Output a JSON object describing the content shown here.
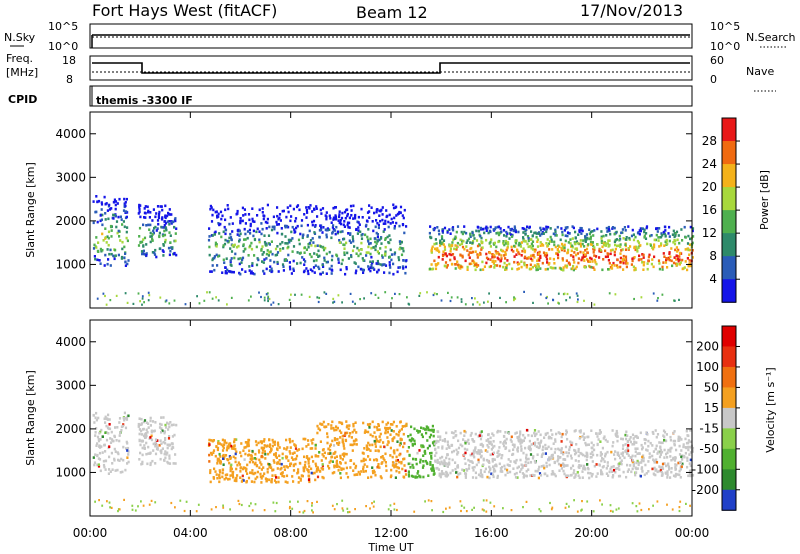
{
  "header": {
    "station": "Fort Hays West (fitACF)",
    "beam": "Beam 12",
    "date": "17/Nov/2013"
  },
  "top_panels": {
    "nsky_label": "N.Sky",
    "nsearch_label": "N.Search",
    "nsky_ticks": [
      "10^5",
      "10^0"
    ],
    "nsearch_ticks": [
      "10^5",
      "10^0"
    ],
    "freq_label_1": "Freq.",
    "freq_label_2": "[MHz]",
    "freq_ticks": [
      "18",
      "8"
    ],
    "nave_label": "Nave",
    "nave_ticks": [
      "60",
      "0"
    ],
    "cpid_label": "CPID",
    "cpid_text": "themis -3300 IF"
  },
  "chart_data": [
    {
      "type": "heatmap",
      "name": "power",
      "ylabel": "Slant Range [km]",
      "colorbar_label": "Power [dB]",
      "yticks": [
        "1000",
        "2000",
        "3000",
        "4000"
      ],
      "ylim": [
        0,
        4500
      ],
      "xlim": [
        0,
        24
      ],
      "colorbar_ticks": [
        "4",
        "8",
        "12",
        "16",
        "20",
        "24",
        "28"
      ],
      "colors": [
        "#1515e8",
        "#2a5cb8",
        "#2e8a6a",
        "#4fb04f",
        "#a8d83c",
        "#f4b21a",
        "#f06a10",
        "#e81818"
      ],
      "regions": [
        {
          "t0": 0.1,
          "t1": 1.5,
          "r0": 1000,
          "r1": 2600,
          "core": 1600,
          "level": 0.55
        },
        {
          "t0": 1.9,
          "t1": 3.4,
          "r0": 1200,
          "r1": 2400,
          "core": 1600,
          "level": 0.5
        },
        {
          "t0": 4.7,
          "t1": 12.6,
          "r0": 800,
          "r1": 2400,
          "core": 1400,
          "level": 0.45
        },
        {
          "t0": 13.5,
          "t1": 24.0,
          "r0": 900,
          "r1": 1900,
          "core": 1200,
          "level": 0.9
        }
      ]
    },
    {
      "type": "heatmap",
      "name": "velocity",
      "ylabel": "Slant Range [km]",
      "colorbar_label": "Velocity [m s⁻¹]",
      "yticks": [
        "1000",
        "2000",
        "3000",
        "4000"
      ],
      "ylim": [
        0,
        4500
      ],
      "xlim": [
        0,
        24
      ],
      "colorbar_ticks": [
        "200",
        "100",
        "50",
        "15",
        "-15",
        "-50",
        "-100",
        "-200"
      ],
      "colors": [
        "#2040c8",
        "#2e8a2e",
        "#50b030",
        "#8ad04a",
        "#c8c8c8",
        "#f4a020",
        "#f07010",
        "#e83010",
        "#e00000"
      ],
      "regions": [
        {
          "t0": 0.1,
          "t1": 1.5,
          "r0": 1000,
          "r1": 2400,
          "color": "#c8c8c8"
        },
        {
          "t0": 1.9,
          "t1": 3.4,
          "r0": 1200,
          "r1": 2300,
          "color": "#c8c8c8"
        },
        {
          "t0": 4.7,
          "t1": 9.0,
          "r0": 800,
          "r1": 1800,
          "color": "#f4a020"
        },
        {
          "t0": 9.0,
          "t1": 12.6,
          "r0": 900,
          "r1": 2200,
          "color": "#f4a020"
        },
        {
          "t0": 12.6,
          "t1": 13.7,
          "r0": 900,
          "r1": 2100,
          "color": "#50b030"
        },
        {
          "t0": 13.7,
          "t1": 24.0,
          "r0": 900,
          "r1": 2000,
          "color": "#c8c8c8"
        }
      ]
    }
  ],
  "xaxis": {
    "ticks": [
      "00:00",
      "04:00",
      "08:00",
      "12:00",
      "16:00",
      "20:00",
      "00:00"
    ],
    "label": "Time UT"
  }
}
